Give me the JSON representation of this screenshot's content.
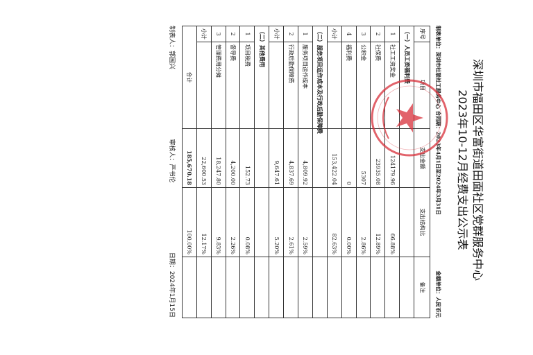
{
  "title_line1": "深圳市福田区华富街道田面社区党群服务中心",
  "title_line2": "2023年10-12月经费支出公示表",
  "meta": {
    "unit": "制表单位：深圳市社联社工服务中心 合同期：2023年4月1日至2024年3月31日",
    "currency": "金额单位：人民币元"
  },
  "headers": [
    "序号",
    "项目",
    "支出金额",
    "支出结构比",
    "备注"
  ],
  "rows": [
    {
      "type": "section",
      "label": "（一）人员工资福利费"
    },
    {
      "type": "item",
      "no": "1",
      "name": "社工工资奖金",
      "amount": "124179.96",
      "ratio": "66.88%"
    },
    {
      "type": "item",
      "no": "2",
      "name": "社保费",
      "amount": "23935.08",
      "ratio": "12.89%"
    },
    {
      "type": "item",
      "no": "3",
      "name": "公积金",
      "amount": "5307",
      "ratio": "2.86%"
    },
    {
      "type": "item",
      "no": "4",
      "name": "福利费",
      "amount": "0",
      "ratio": "0.00%"
    },
    {
      "type": "subtotal",
      "no": "小计",
      "amount": "153,422.04",
      "ratio": "82.63%"
    },
    {
      "type": "section",
      "label": "（二）服务项目运作成本及行政后勤保障费"
    },
    {
      "type": "item",
      "no": "1",
      "name": "服务项目运作成本",
      "amount": "4,809.92",
      "ratio": "2.59%"
    },
    {
      "type": "item",
      "no": "2",
      "name": "行政后勤保障费",
      "amount": "4,837.69",
      "ratio": "2.61%"
    },
    {
      "type": "subtotal",
      "no": "小计",
      "amount": "9,647.61",
      "ratio": "5.20%"
    },
    {
      "type": "section",
      "label": "（二）其他费用"
    },
    {
      "type": "item",
      "no": "1",
      "name": "项目税费",
      "amount": "152.73",
      "ratio": "0.08%"
    },
    {
      "type": "item",
      "no": "2",
      "name": "督导费",
      "amount": "4,200.00",
      "ratio": "2.26%"
    },
    {
      "type": "item",
      "no": "3",
      "name": "管理费用分摊",
      "amount": "18,247.80",
      "ratio": "9.83%"
    },
    {
      "type": "subtotal",
      "no": "小计",
      "amount": "22,600.53",
      "ratio": "12.17%"
    },
    {
      "type": "total",
      "label": "合计",
      "amount": "185,670.18",
      "ratio": "100.00%"
    }
  ],
  "footer": {
    "preparer": "制表人：郭国兴",
    "reviewer": "审核人：严书伦",
    "date": "日期：2024年1月15日"
  },
  "stamp": {
    "color": "#d9303a",
    "text": "深圳市社联社工服务中心"
  }
}
